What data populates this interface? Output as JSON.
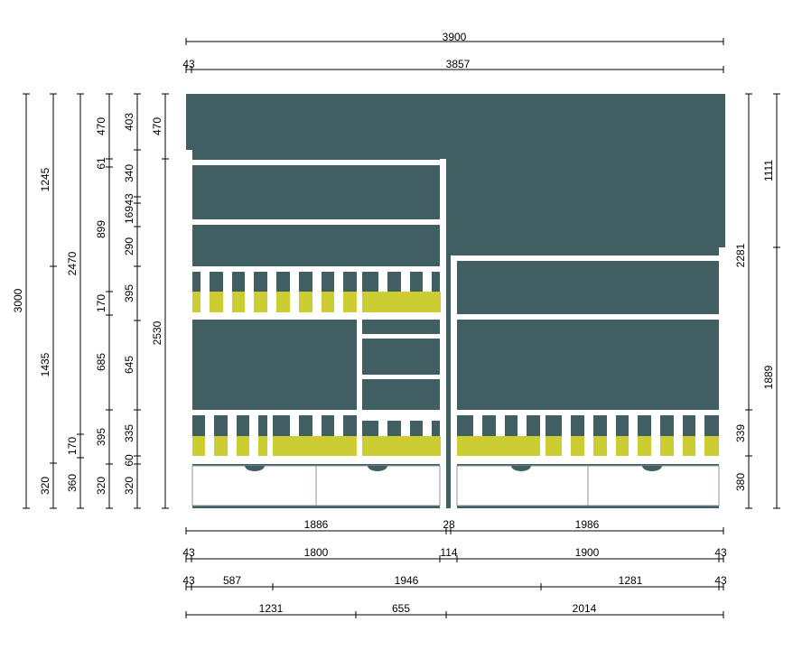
{
  "colors": {
    "wall": "#415f63",
    "wood": "#ffffff",
    "mattress": "#cccc33",
    "drawer_handle": "#415f63",
    "line": "#000000"
  },
  "labels": {
    "top_total": "3900",
    "top_offset": "43",
    "top_inner": "3857",
    "left_total": "3000",
    "left_1245": "1245",
    "left_1435": "1435",
    "left_320_a": "320",
    "left_2470": "2470",
    "left_360": "360",
    "left_170_a": "170",
    "left_470_a": "470",
    "left_61": "61",
    "left_899": "899",
    "left_170_b": "170",
    "left_685": "685",
    "left_395_a": "395",
    "left_320_b": "320",
    "left_403": "403",
    "left_340": "340",
    "left_43": "43",
    "left_169": "169",
    "left_290": "290",
    "left_395_b": "395",
    "left_645": "645",
    "left_335": "335",
    "left_60": "60",
    "left_320_c": "320",
    "left_470_b": "470",
    "left_2530": "2530",
    "right_1111": "1111",
    "right_2281": "2281",
    "right_1889": "1889",
    "right_339": "339",
    "right_380": "380",
    "bot1_a": "1886",
    "bot1_b": "28",
    "bot1_c": "1986",
    "bot2_a": "43",
    "bot2_b": "1800",
    "bot2_c": "114",
    "bot2_d": "1900",
    "bot2_e": "43",
    "bot3_a": "43",
    "bot3_b": "587",
    "bot3_c": "1946",
    "bot3_d": "1281",
    "bot3_e": "43",
    "bot4_a": "1231",
    "bot4_b": "655",
    "bot4_c": "2014"
  }
}
